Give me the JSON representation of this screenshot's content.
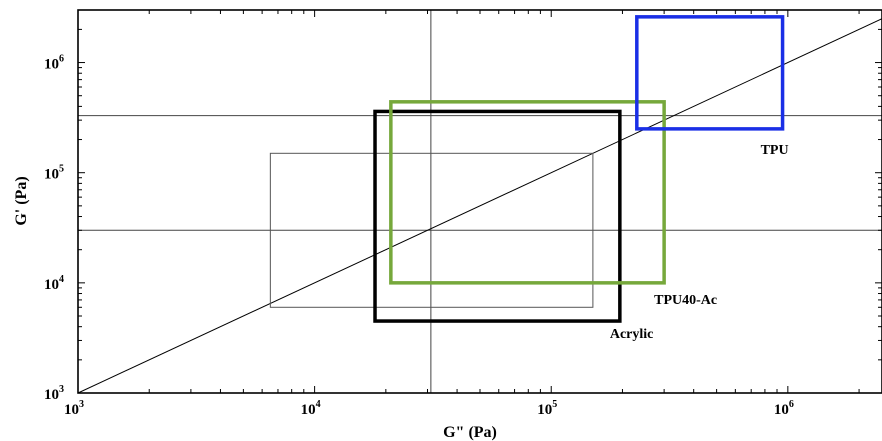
{
  "chart_data": {
    "type": "line",
    "title": "",
    "xlabel": "G\" (Pa)",
    "ylabel": "G' (Pa)",
    "xscale": "log",
    "yscale": "log",
    "xlim": [
      1000,
      2500000
    ],
    "ylim": [
      1000,
      3000000
    ],
    "grid": false,
    "x_ticks": [
      {
        "base": "10",
        "exp": "3",
        "value": 1000
      },
      {
        "base": "10",
        "exp": "4",
        "value": 10000
      },
      {
        "base": "10",
        "exp": "5",
        "value": 100000
      },
      {
        "base": "10",
        "exp": "6",
        "value": 1000000
      }
    ],
    "y_ticks": [
      {
        "base": "10",
        "exp": "3",
        "value": 1000
      },
      {
        "base": "10",
        "exp": "4",
        "value": 10000
      },
      {
        "base": "10",
        "exp": "5",
        "value": 100000
      },
      {
        "base": "10",
        "exp": "6",
        "value": 1000000
      }
    ],
    "reference_lines": [
      {
        "orientation": "vertical",
        "value": 31000
      },
      {
        "orientation": "horizontal",
        "value": 330000
      },
      {
        "orientation": "horizontal",
        "value": 30000
      }
    ],
    "diagonal": {
      "from": [
        1000,
        1000
      ],
      "to": [
        2500000,
        2500000
      ]
    },
    "regions": [
      {
        "label": "",
        "color": "#555555",
        "width": 1,
        "x": [
          6500,
          150000
        ],
        "y": [
          6000,
          150000
        ]
      },
      {
        "label": "Acrylic",
        "color": "#000000",
        "width": 3.5,
        "x": [
          18000,
          195000
        ],
        "y": [
          4500,
          360000
        ]
      },
      {
        "label": "TPU40-Ac",
        "color": "#76a83b",
        "width": 3.5,
        "x": [
          21000,
          300000
        ],
        "y": [
          10000,
          440000
        ]
      },
      {
        "label": "TPU",
        "color": "#1a2fe6",
        "width": 3.5,
        "x": [
          230000,
          950000
        ],
        "y": [
          250000,
          2600000
        ]
      }
    ]
  }
}
